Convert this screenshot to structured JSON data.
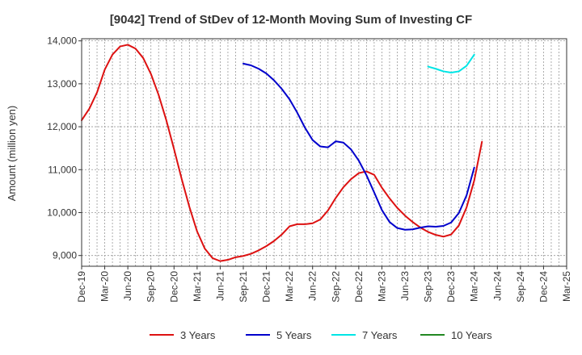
{
  "chart_data": {
    "type": "line",
    "title": "[9042]  Trend of StDev of 12-Month Moving Sum of Investing CF",
    "xlabel": "",
    "ylabel": "Amount (million yen)",
    "ylim": [
      8750,
      14050
    ],
    "y_ticks": [
      9000,
      10000,
      11000,
      12000,
      13000,
      14000
    ],
    "y_tick_labels": [
      "9,000",
      "10,000",
      "11,000",
      "12,000",
      "13,000",
      "14,000"
    ],
    "x_tick_labels": [
      "Dec-19",
      "Mar-20",
      "Jun-20",
      "Sep-20",
      "Dec-20",
      "Mar-21",
      "Jun-21",
      "Sep-21",
      "Dec-21",
      "Mar-22",
      "Jun-22",
      "Sep-22",
      "Dec-22",
      "Mar-23",
      "Jun-23",
      "Sep-23",
      "Dec-23",
      "Mar-24",
      "Jun-24",
      "Sep-24",
      "Dec-24",
      "Mar-25"
    ],
    "grid": true,
    "legend_position": "bottom",
    "series": [
      {
        "name": "3 Years",
        "color": "#dd1111",
        "points": [
          [
            "Dec-19",
            12150
          ],
          [
            "Jan-20",
            12420
          ],
          [
            "Feb-20",
            12800
          ],
          [
            "Mar-20",
            13330
          ],
          [
            "Apr-20",
            13680
          ],
          [
            "May-20",
            13870
          ],
          [
            "Jun-20",
            13910
          ],
          [
            "Jul-20",
            13820
          ],
          [
            "Aug-20",
            13600
          ],
          [
            "Sep-20",
            13230
          ],
          [
            "Oct-20",
            12740
          ],
          [
            "Nov-20",
            12150
          ],
          [
            "Dec-20",
            11480
          ],
          [
            "Jan-21",
            10780
          ],
          [
            "Feb-21",
            10130
          ],
          [
            "Mar-21",
            9560
          ],
          [
            "Apr-21",
            9160
          ],
          [
            "May-21",
            8940
          ],
          [
            "Jun-21",
            8870
          ],
          [
            "Jul-21",
            8900
          ],
          [
            "Aug-21",
            8960
          ],
          [
            "Sep-21",
            8990
          ],
          [
            "Oct-21",
            9040
          ],
          [
            "Nov-21",
            9120
          ],
          [
            "Dec-21",
            9220
          ],
          [
            "Jan-22",
            9340
          ],
          [
            "Feb-22",
            9490
          ],
          [
            "Mar-22",
            9680
          ],
          [
            "Apr-22",
            9730
          ],
          [
            "May-22",
            9730
          ],
          [
            "Jun-22",
            9750
          ],
          [
            "Jul-22",
            9840
          ],
          [
            "Aug-22",
            10050
          ],
          [
            "Sep-22",
            10340
          ],
          [
            "Oct-22",
            10590
          ],
          [
            "Nov-22",
            10780
          ],
          [
            "Dec-22",
            10920
          ],
          [
            "Jan-23",
            10960
          ],
          [
            "Feb-23",
            10880
          ],
          [
            "Mar-23",
            10580
          ],
          [
            "Apr-23",
            10330
          ],
          [
            "May-23",
            10110
          ],
          [
            "Jun-23",
            9930
          ],
          [
            "Jul-23",
            9780
          ],
          [
            "Aug-23",
            9650
          ],
          [
            "Sep-23",
            9550
          ],
          [
            "Oct-23",
            9480
          ],
          [
            "Nov-23",
            9440
          ],
          [
            "Dec-23",
            9490
          ],
          [
            "Jan-24",
            9700
          ],
          [
            "Feb-24",
            10120
          ],
          [
            "Mar-24",
            10750
          ],
          [
            "Apr-24",
            11650
          ]
        ]
      },
      {
        "name": "5 Years",
        "color": "#0000cc",
        "points": [
          [
            "Sep-21",
            13470
          ],
          [
            "Oct-21",
            13430
          ],
          [
            "Nov-21",
            13350
          ],
          [
            "Dec-21",
            13240
          ],
          [
            "Jan-22",
            13080
          ],
          [
            "Feb-22",
            12880
          ],
          [
            "Mar-22",
            12640
          ],
          [
            "Apr-22",
            12330
          ],
          [
            "May-22",
            11980
          ],
          [
            "Jun-22",
            11690
          ],
          [
            "Jul-22",
            11540
          ],
          [
            "Aug-22",
            11520
          ],
          [
            "Sep-22",
            11660
          ],
          [
            "Oct-22",
            11630
          ],
          [
            "Nov-22",
            11470
          ],
          [
            "Dec-22",
            11210
          ],
          [
            "Jan-23",
            10870
          ],
          [
            "Feb-23",
            10470
          ],
          [
            "Mar-23",
            10060
          ],
          [
            "Apr-23",
            9780
          ],
          [
            "May-23",
            9640
          ],
          [
            "Jun-23",
            9600
          ],
          [
            "Jul-23",
            9610
          ],
          [
            "Aug-23",
            9650
          ],
          [
            "Sep-23",
            9680
          ],
          [
            "Oct-23",
            9670
          ],
          [
            "Nov-23",
            9690
          ],
          [
            "Dec-23",
            9770
          ],
          [
            "Jan-24",
            9990
          ],
          [
            "Feb-24",
            10400
          ],
          [
            "Mar-24",
            11050
          ]
        ]
      },
      {
        "name": "7 Years",
        "color": "#00e5e5",
        "points": [
          [
            "Sep-23",
            13400
          ],
          [
            "Oct-23",
            13350
          ],
          [
            "Nov-23",
            13290
          ],
          [
            "Dec-23",
            13260
          ],
          [
            "Jan-24",
            13290
          ],
          [
            "Feb-24",
            13420
          ],
          [
            "Mar-24",
            13680
          ]
        ]
      },
      {
        "name": "10 Years",
        "color": "#228822",
        "points": []
      }
    ]
  }
}
